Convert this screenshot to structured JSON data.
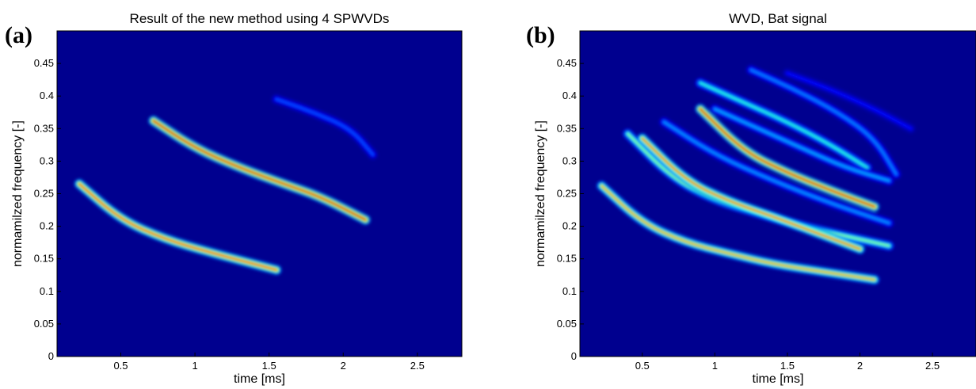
{
  "chart_data": [
    {
      "type": "heatmap",
      "panel_label": "(a)",
      "title": "Result of the new method using 4 SPWVDs",
      "xlabel": "time [ms]",
      "ylabel": "normamilzed frequency [-]",
      "xlim": [
        0.07,
        2.8
      ],
      "ylim": [
        0,
        0.5
      ],
      "xticks": [
        0.5,
        1,
        1.5,
        2,
        2.5
      ],
      "xtick_labels": [
        "0.5",
        "1",
        "1.5",
        "2",
        "2.5"
      ],
      "yticks": [
        0,
        0.05,
        0.1,
        0.15,
        0.2,
        0.25,
        0.3,
        0.35,
        0.4,
        0.45
      ],
      "ytick_labels": [
        "0",
        "0.05",
        "0.1",
        "0.15",
        "0.2",
        "0.25",
        "0.3",
        "0.35",
        "0.4",
        "0.45"
      ],
      "colormap": "jet",
      "background_color": "#00008f",
      "ridges": [
        {
          "name": "",
          "x": [
            0.22,
            0.5,
            0.8,
            1.1,
            1.35,
            1.55
          ],
          "y": [
            0.265,
            0.21,
            0.18,
            0.16,
            0.145,
            0.133
          ],
          "peak": 0.9
        },
        {
          "name": "",
          "x": [
            0.72,
            1.0,
            1.3,
            1.6,
            1.85,
            2.15
          ],
          "y": [
            0.362,
            0.32,
            0.29,
            0.265,
            0.245,
            0.21
          ],
          "peak": 1.0
        },
        {
          "name": "",
          "x": [
            1.55,
            1.8,
            2.05,
            2.2
          ],
          "y": [
            0.395,
            0.375,
            0.35,
            0.31
          ],
          "peak": 0.22
        }
      ]
    },
    {
      "type": "heatmap",
      "panel_label": "(b)",
      "title": "WVD, Bat signal",
      "xlabel": "time [ms]",
      "ylabel": "normamilzed frequency [-]",
      "xlim": [
        0.07,
        2.8
      ],
      "ylim": [
        0,
        0.5
      ],
      "xticks": [
        0.5,
        1,
        1.5,
        2,
        2.5
      ],
      "xtick_labels": [
        "0.5",
        "1",
        "1.5",
        "2",
        "2.5"
      ],
      "yticks": [
        0,
        0.05,
        0.1,
        0.15,
        0.2,
        0.25,
        0.3,
        0.35,
        0.4,
        0.45
      ],
      "ytick_labels": [
        "0",
        "0.05",
        "0.1",
        "0.15",
        "0.2",
        "0.25",
        "0.3",
        "0.35",
        "0.4",
        "0.45"
      ],
      "colormap": "jet",
      "background_color": "#00008f",
      "ridges": [
        {
          "name": "",
          "x": [
            0.22,
            0.5,
            0.8,
            1.1,
            1.4,
            1.75,
            2.1
          ],
          "y": [
            0.262,
            0.205,
            0.175,
            0.158,
            0.142,
            0.13,
            0.118
          ],
          "peak": 0.78
        },
        {
          "name": "",
          "x": [
            0.4,
            0.7,
            1.0,
            1.3,
            1.6,
            1.9,
            2.2
          ],
          "y": [
            0.342,
            0.275,
            0.24,
            0.22,
            0.2,
            0.185,
            0.17
          ],
          "peak": 0.55
        },
        {
          "name": "",
          "x": [
            0.5,
            0.8,
            1.1,
            1.4,
            1.7,
            2.0
          ],
          "y": [
            0.335,
            0.27,
            0.238,
            0.215,
            0.19,
            0.165
          ],
          "peak": 0.85
        },
        {
          "name": "",
          "x": [
            0.9,
            1.2,
            1.5,
            1.8,
            2.1
          ],
          "y": [
            0.38,
            0.315,
            0.282,
            0.255,
            0.23
          ],
          "peak": 1.0
        },
        {
          "name": "",
          "x": [
            0.65,
            1.0,
            1.4,
            1.8,
            2.2
          ],
          "y": [
            0.36,
            0.31,
            0.27,
            0.235,
            0.205
          ],
          "peak": 0.3
        },
        {
          "name": "",
          "x": [
            0.9,
            1.2,
            1.5,
            1.8,
            2.05
          ],
          "y": [
            0.42,
            0.39,
            0.36,
            0.325,
            0.29
          ],
          "peak": 0.45
        },
        {
          "name": "",
          "x": [
            1.0,
            1.3,
            1.6,
            1.9,
            2.2
          ],
          "y": [
            0.38,
            0.35,
            0.32,
            0.29,
            0.27
          ],
          "peak": 0.32
        },
        {
          "name": "",
          "x": [
            1.25,
            1.55,
            1.85,
            2.1,
            2.25
          ],
          "y": [
            0.44,
            0.41,
            0.375,
            0.335,
            0.28
          ],
          "peak": 0.28
        },
        {
          "name": "",
          "x": [
            1.5,
            1.8,
            2.1,
            2.35
          ],
          "y": [
            0.435,
            0.41,
            0.38,
            0.35
          ],
          "peak": 0.15
        }
      ]
    }
  ]
}
